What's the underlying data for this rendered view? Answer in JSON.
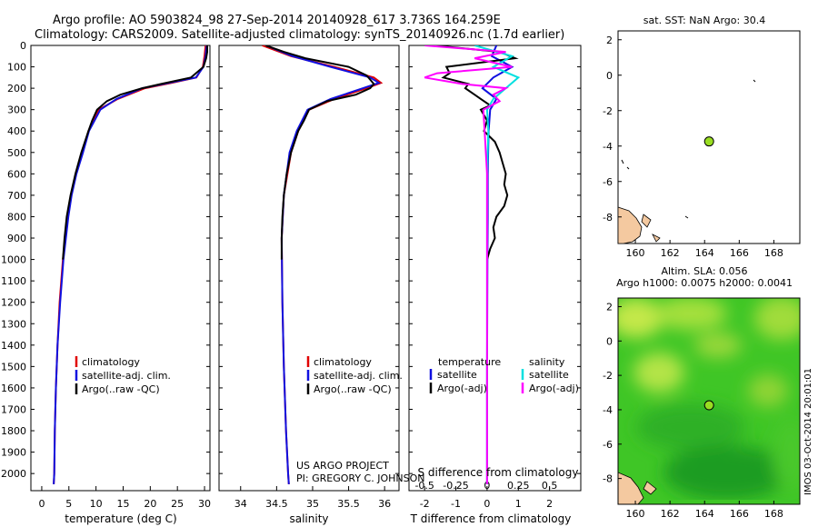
{
  "header": {
    "line1": "Argo profile: AO 5903824_98 27-Sep-2014 20140928_617 3.736S 164.259E",
    "line2": "Climatology: CARS2009. Satellite-adjusted climatology: synTS_20140926.nc (1.7d earlier)"
  },
  "credit": {
    "project": "US ARGO PROJECT",
    "pi": "PI: GREGORY C. JOHNSON"
  },
  "side_stamp": "IMOS 03-Oct-2014 20:01:01",
  "colors": {
    "climatology": "#e00000",
    "satellite": "#1010e0",
    "argo": "#000000",
    "sal_satellite": "#00e0e0",
    "sal_argo": "#ff00ff",
    "marker": "#99dd22"
  },
  "chart_data": [
    {
      "type": "line",
      "name": "temperature",
      "xlabel": "temperature (deg C)",
      "ylim": [
        2080,
        0
      ],
      "xlim": [
        -2,
        31
      ],
      "xticks": [
        0,
        5,
        10,
        15,
        20,
        25,
        30
      ],
      "yticks": [
        0,
        100,
        200,
        300,
        400,
        500,
        600,
        700,
        800,
        900,
        1000,
        1100,
        1200,
        1300,
        1400,
        1500,
        1600,
        1700,
        1800,
        1900,
        2000
      ],
      "legend": [
        "climatology",
        "satellite-adj. clim.",
        "Argo(..raw -QC)"
      ],
      "legend_position": "lower-right",
      "series": [
        {
          "name": "climatology",
          "depth": [
            0,
            50,
            100,
            150,
            175,
            200,
            250,
            300,
            400,
            500,
            600,
            700,
            800,
            1000,
            1200,
            1400,
            1600,
            1800,
            2000,
            2050
          ],
          "values": [
            30.2,
            30.0,
            29.7,
            28.5,
            24,
            19,
            14,
            10.5,
            8.6,
            7.5,
            6.3,
            5.4,
            4.8,
            3.9,
            3.3,
            2.9,
            2.6,
            2.4,
            2.3,
            2.2
          ]
        },
        {
          "name": "satellite-adj. clim.",
          "depth": [
            0,
            50,
            100,
            150,
            175,
            200,
            250,
            300,
            400,
            500,
            600,
            700,
            800,
            1000,
            1200,
            1400,
            1600,
            1800,
            2000,
            2050
          ],
          "values": [
            30.4,
            30.2,
            29.8,
            28.4,
            23.5,
            18.5,
            13.8,
            10.8,
            8.7,
            7.6,
            6.4,
            5.5,
            4.9,
            4.0,
            3.4,
            2.9,
            2.6,
            2.4,
            2.3,
            2.2
          ]
        },
        {
          "name": "Argo(..raw -QC)",
          "depth": [
            0,
            30,
            60,
            100,
            150,
            180,
            200,
            230,
            260,
            300,
            350,
            400,
            500,
            600,
            700,
            800,
            900,
            1000
          ],
          "values": [
            30.5,
            30.5,
            30.3,
            29.8,
            27.5,
            22,
            18.5,
            14.5,
            12,
            10.2,
            9.3,
            8.6,
            7.3,
            6.2,
            5.3,
            4.6,
            4.2,
            3.9
          ]
        }
      ]
    },
    {
      "type": "line",
      "name": "salinity",
      "xlabel": "salinity",
      "ylim": [
        2080,
        0
      ],
      "xlim": [
        33.7,
        36.2
      ],
      "xticks": [
        34,
        34.5,
        35,
        35.5,
        36
      ],
      "xtick_labels": [
        "34",
        "34.5",
        "35",
        "35.5",
        "36"
      ],
      "legend": [
        "climatology",
        "satellite-adj. clim.",
        "Argo(..raw -QC)"
      ],
      "legend_position": "lower-right",
      "series": [
        {
          "name": "climatology",
          "depth": [
            0,
            50,
            100,
            150,
            175,
            200,
            250,
            300,
            400,
            500,
            700,
            900,
            1200,
            1500,
            1800,
            2000,
            2050
          ],
          "values": [
            34.3,
            34.7,
            35.3,
            35.85,
            35.95,
            35.75,
            35.3,
            34.95,
            34.8,
            34.7,
            34.6,
            34.57,
            34.58,
            34.6,
            34.63,
            34.66,
            34.67
          ]
        },
        {
          "name": "satellite-adj. clim.",
          "depth": [
            0,
            50,
            100,
            150,
            175,
            200,
            250,
            300,
            400,
            500,
            700,
            900,
            1200,
            1500,
            1800,
            2000,
            2050
          ],
          "values": [
            34.35,
            34.72,
            35.25,
            35.8,
            35.92,
            35.7,
            35.25,
            34.93,
            34.78,
            34.68,
            34.6,
            34.57,
            34.58,
            34.6,
            34.63,
            34.66,
            34.67
          ]
        },
        {
          "name": "Argo(..raw -QC)",
          "depth": [
            0,
            30,
            60,
            100,
            140,
            180,
            200,
            230,
            260,
            300,
            350,
            400,
            500,
            600,
            700,
            800,
            900,
            1000
          ],
          "values": [
            34.35,
            34.6,
            34.9,
            35.5,
            35.75,
            35.85,
            35.8,
            35.6,
            35.2,
            34.95,
            34.88,
            34.8,
            34.7,
            34.64,
            34.6,
            34.58,
            34.57,
            34.57
          ]
        }
      ]
    },
    {
      "type": "line",
      "name": "differences",
      "xlabel": "T difference from climatology",
      "top_axis_label": "S difference from climatology",
      "ylim": [
        2080,
        0
      ],
      "xlim": [
        -2.5,
        3
      ],
      "xticks": [
        -2,
        -1,
        0,
        1,
        2
      ],
      "top_xticks": [
        -0.5,
        -0.25,
        0,
        0.25,
        0.5
      ],
      "top_xtick_labels": [
        "-0.5",
        "-0.25",
        "0",
        "0.25",
        "0.5"
      ],
      "legend_title_left": "temperature",
      "legend_title_right": "salinity",
      "legend": [
        "satellite",
        "Argo(-adj)",
        "satellite",
        "Argo(-adj)"
      ],
      "legend_position": "center",
      "series": [
        {
          "name": "satellite",
          "variable": "temperature",
          "depth": [
            0,
            50,
            100,
            150,
            200,
            250,
            300,
            400,
            600,
            800,
            1000,
            1500,
            2000,
            2050
          ],
          "values": [
            0.3,
            0.15,
            0.8,
            0.2,
            -0.15,
            0.3,
            0.1,
            0.05,
            0.02,
            0.02,
            0.01,
            0.0,
            0.0,
            0.0
          ]
        },
        {
          "name": "Argo(-adj)",
          "variable": "temperature",
          "depth": [
            0,
            30,
            60,
            100,
            130,
            150,
            180,
            200,
            230,
            250,
            280,
            300,
            350,
            400,
            450,
            500,
            550,
            600,
            650,
            700,
            750,
            800,
            850,
            900,
            950,
            1000
          ],
          "values": [
            -1.7,
            0.4,
            0.9,
            -1.3,
            -1.2,
            -1.4,
            -0.6,
            -0.7,
            -0.4,
            -0.2,
            0.1,
            -0.2,
            0.0,
            -0.1,
            0.25,
            0.4,
            0.5,
            0.6,
            0.55,
            0.65,
            0.55,
            0.3,
            0.2,
            0.25,
            0.1,
            0.0
          ]
        },
        {
          "name": "satellite",
          "variable": "salinity",
          "depth": [
            0,
            50,
            100,
            150,
            200,
            250,
            300,
            400,
            600,
            800,
            1000,
            1500,
            2000,
            2050
          ],
          "values": [
            -0.1,
            0.2,
            0.05,
            0.25,
            0.15,
            0.05,
            0.0,
            0.01,
            0.0,
            0.0,
            0.0,
            0.0,
            0.0,
            0.0
          ]
        },
        {
          "name": "Argo(-adj)",
          "variable": "salinity",
          "depth": [
            0,
            30,
            60,
            100,
            130,
            150,
            180,
            200,
            230,
            260,
            300,
            400,
            600,
            800,
            1000,
            1500,
            2000,
            2050
          ],
          "values": [
            -0.5,
            0.15,
            -0.1,
            0.2,
            -0.4,
            -0.5,
            -0.2,
            0.15,
            0.05,
            0.1,
            -0.03,
            -0.02,
            0.0,
            0.0,
            0.0,
            0.0,
            0.0,
            0.0
          ]
        }
      ]
    },
    {
      "type": "scatter",
      "name": "sst-map",
      "title": "sat. SST: NaN Argo: 30.4",
      "xlim": [
        159,
        169.5
      ],
      "ylim": [
        -9.5,
        2.5
      ],
      "xticks": [
        160,
        162,
        164,
        166,
        168
      ],
      "yticks": [
        2,
        0,
        -2,
        -4,
        -6,
        -8
      ],
      "points": [
        {
          "x": 164.26,
          "y": -3.74
        }
      ]
    },
    {
      "type": "heatmap",
      "name": "sla-map",
      "title": "Altim. SLA: 0.056",
      "subtitle": "Argo h1000: 0.0075 h2000: 0.0041",
      "xlim": [
        159,
        169.5
      ],
      "ylim": [
        -9.5,
        2.5
      ],
      "xticks": [
        160,
        162,
        164,
        166,
        168
      ],
      "yticks": [
        2,
        0,
        -2,
        -4,
        -6,
        -8
      ],
      "points": [
        {
          "x": 164.26,
          "y": -3.74
        }
      ]
    }
  ]
}
